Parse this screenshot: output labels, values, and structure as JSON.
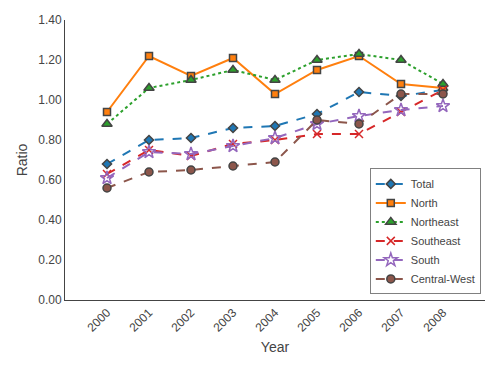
{
  "chart_data": {
    "type": "line",
    "x": [
      2000,
      2001,
      2002,
      2003,
      2004,
      2005,
      2006,
      2007,
      2008
    ],
    "series": [
      {
        "name": "Total",
        "values": [
          0.68,
          0.8,
          0.81,
          0.86,
          0.87,
          0.93,
          1.04,
          1.02,
          1.05
        ],
        "marker": "diamond",
        "line_style": "dashed"
      },
      {
        "name": "North",
        "values": [
          0.94,
          1.22,
          1.12,
          1.21,
          1.03,
          1.15,
          1.22,
          1.08,
          1.06
        ],
        "marker": "square",
        "line_style": "solid"
      },
      {
        "name": "Northeast",
        "values": [
          0.88,
          1.06,
          1.1,
          1.15,
          1.1,
          1.2,
          1.23,
          1.2,
          1.08
        ],
        "marker": "triangle-up",
        "line_style": "dotted"
      },
      {
        "name": "Southeast",
        "values": [
          0.63,
          0.75,
          0.72,
          0.78,
          0.8,
          0.83,
          0.83,
          0.94,
          1.05
        ],
        "marker": "x",
        "line_style": "dashed"
      },
      {
        "name": "South",
        "values": [
          0.61,
          0.74,
          0.73,
          0.77,
          0.81,
          0.88,
          0.92,
          0.95,
          0.97
        ],
        "marker": "star",
        "line_style": "dashed"
      },
      {
        "name": "Central-West",
        "values": [
          0.56,
          0.64,
          0.65,
          0.67,
          0.69,
          0.9,
          0.88,
          1.03,
          1.03
        ],
        "marker": "circle",
        "line_style": "dashed"
      }
    ],
    "x_label": "Year",
    "y_label": "Ratio",
    "xlim": [
      1999,
      2009
    ],
    "xticks": [
      2000,
      2001,
      2002,
      2003,
      2004,
      2005,
      2006,
      2007,
      2008
    ],
    "ylim": [
      0.0,
      1.4
    ],
    "yticks": [
      {
        "value": 0.0,
        "label": "0.00"
      },
      {
        "value": 0.2,
        "label": "0.20"
      },
      {
        "value": 0.4,
        "label": "0.40"
      },
      {
        "value": 0.6,
        "label": "0.60"
      },
      {
        "value": 0.8,
        "label": "0.80"
      },
      {
        "value": 1.0,
        "label": "1.00"
      },
      {
        "value": 1.2,
        "label": "1.20"
      },
      {
        "value": 1.4,
        "label": "1.40"
      }
    ],
    "grid": false,
    "legend": "lower right"
  }
}
